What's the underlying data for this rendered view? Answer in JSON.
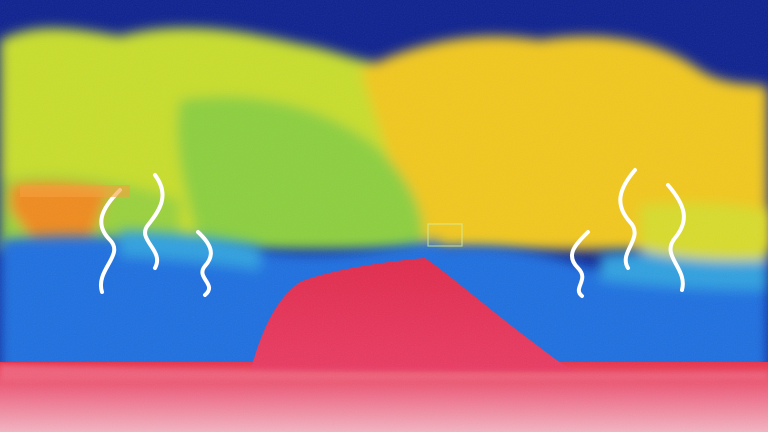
{
  "image": {
    "kind": "thermal-camera photo",
    "palette": [
      "#0b1f8f",
      "#1a55d8",
      "#2fa0e0",
      "#7fd04a",
      "#c8e020",
      "#f2c81a",
      "#f08a1c",
      "#e8304a",
      "#f2a0b0"
    ],
    "icons": [
      "heat-wave-icon",
      "heat-wave-icon",
      "heat-wave-icon",
      "heat-wave-icon",
      "heat-wave-icon",
      "heat-wave-icon"
    ]
  }
}
